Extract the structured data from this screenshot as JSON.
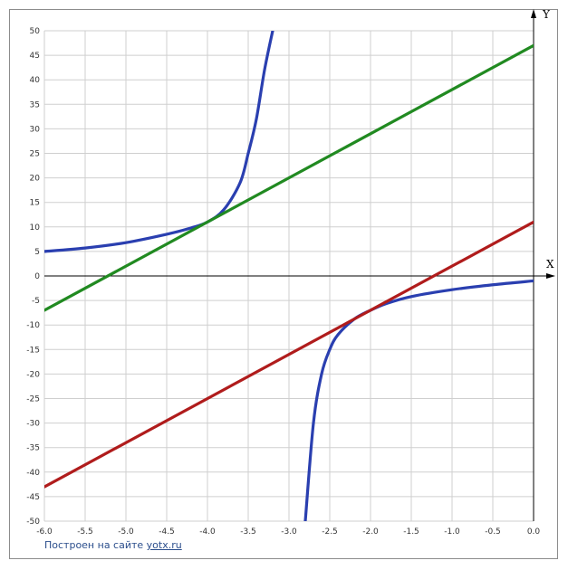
{
  "chart_data": {
    "type": "line",
    "xlabel": "X",
    "ylabel": "Y",
    "xlim": [
      -6,
      0
    ],
    "ylim": [
      -50,
      50
    ],
    "x_ticks": [
      "-6.0",
      "-5.5",
      "-5.0",
      "-4.5",
      "-4.0",
      "-3.5",
      "-3.0",
      "-2.5",
      "-2.0",
      "-1.5",
      "-1.0",
      "-0.5",
      "0.0"
    ],
    "y_ticks": [
      "50",
      "45",
      "40",
      "35",
      "30",
      "25",
      "20",
      "15",
      "10",
      "5",
      "0",
      "-5",
      "-10",
      "-15",
      "-20",
      "-25",
      "-30",
      "-35",
      "-40",
      "-45",
      "-50"
    ],
    "grid": true,
    "series": [
      {
        "color": "#2a3fb0",
        "segments": [
          {
            "x": [
              -6.0,
              -5.5,
              -5.0,
              -4.5,
              -4.2,
              -4.0,
              -3.8,
              -3.6,
              -3.5,
              -3.4,
              -3.3,
              -3.2
            ],
            "y": [
              5.0,
              5.7,
              6.8,
              8.5,
              9.8,
              11.0,
              13.5,
              19.0,
              25.0,
              32.0,
              42.0,
              50.0
            ]
          },
          {
            "x": [
              -2.8,
              -2.7,
              -2.6,
              -2.5,
              -2.4,
              -2.2,
              -2.0,
              -1.8,
              -1.5,
              -1.0,
              -0.5,
              0.0
            ],
            "y": [
              -50.0,
              -30.0,
              -20.0,
              -15.0,
              -12.0,
              -8.8,
              -7.0,
              -5.6,
              -4.2,
              -2.8,
              -1.8,
              -1.0
            ]
          }
        ]
      },
      {
        "color": "#218a21",
        "segments": [
          {
            "x": [
              -6.0,
              0.0
            ],
            "y": [
              -7.0,
              47.0
            ]
          }
        ]
      },
      {
        "color": "#b01c1c",
        "segments": [
          {
            "x": [
              -6.0,
              0.0
            ],
            "y": [
              -43.0,
              11.0
            ]
          }
        ]
      }
    ]
  },
  "credit": {
    "prefix": "Построен на сайте",
    "link": "yotx.ru"
  }
}
